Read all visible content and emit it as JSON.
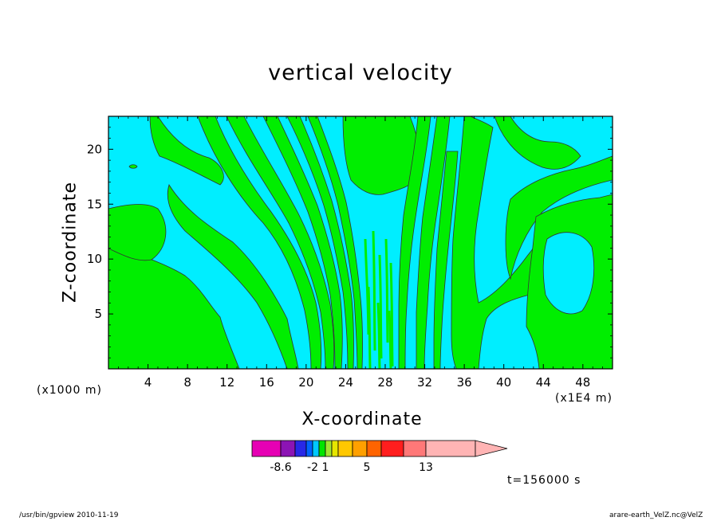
{
  "chart_data": {
    "type": "heatmap",
    "title": "vertical velocity",
    "xlabel": "X-coordinate",
    "ylabel": "Z-coordinate",
    "x_unit": "(x1E4 m)",
    "z_unit": "(x1000 m)",
    "xlim": [
      0,
      51
    ],
    "ylim": [
      0,
      23
    ],
    "x_ticks": [
      "4",
      "8",
      "12",
      "16",
      "20",
      "24",
      "28",
      "32",
      "36",
      "40",
      "44",
      "48"
    ],
    "x_tick_values": [
      4,
      8,
      12,
      16,
      20,
      24,
      28,
      32,
      36,
      40,
      44,
      48
    ],
    "y_ticks": [
      "5",
      "10",
      "15",
      "20"
    ],
    "y_tick_values": [
      5,
      10,
      15,
      20
    ],
    "field_colors": {
      "negative": "#00eeff",
      "positive": "#00ee00",
      "contour": "#333333"
    },
    "colorbar": {
      "colors": [
        "#e600b4",
        "#8c14b4",
        "#2828e6",
        "#0064ff",
        "#00c8ff",
        "#00e600",
        "#a0e632",
        "#e6e600",
        "#ffc800",
        "#ffa000",
        "#ff6400",
        "#ff1e1e",
        "#ff7878",
        "#ffb4b4"
      ],
      "labels": [
        "-8.6",
        "-2",
        "1",
        "5",
        "13"
      ],
      "extend": "max"
    },
    "time_label": "t=156000 s"
  },
  "footer": {
    "left": "/usr/bin/gpview   2010-11-19",
    "right": "arare-earth_VelZ.nc@VelZ"
  }
}
